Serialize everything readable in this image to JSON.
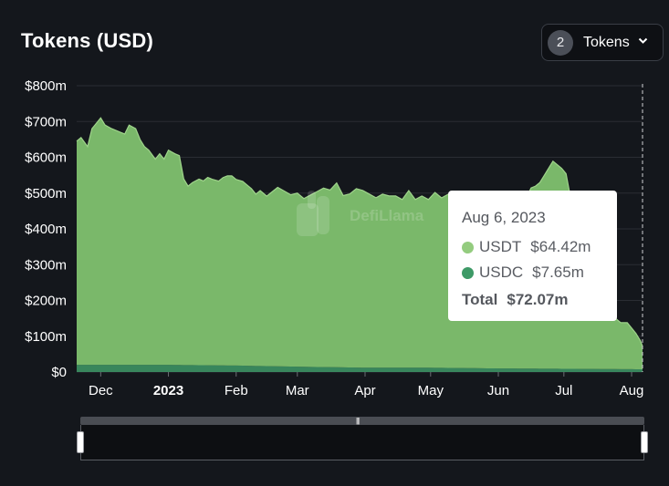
{
  "header": {
    "title": "Tokens (USD)",
    "token_count": "2",
    "select_label": "Tokens"
  },
  "watermark": "DefiLlama",
  "colors": {
    "background": "#14171c",
    "usdt": "#7ab86a",
    "usdc": "#3e9a67",
    "grid": "#2a2d33"
  },
  "tooltip": {
    "date": "Aug 6, 2023",
    "rows": [
      {
        "name": "USDT",
        "value": "$64.42m",
        "color": "#94cc7f"
      },
      {
        "name": "USDC",
        "value": "$7.65m",
        "color": "#3e9a67"
      }
    ],
    "total_label": "Total",
    "total_value": "$72.07m"
  },
  "chart_data": {
    "type": "area",
    "stacked": true,
    "title": "Tokens (USD)",
    "x_tick_labels": [
      "Dec",
      "2023",
      "Feb",
      "Mar",
      "Apr",
      "May",
      "Jun",
      "Jul",
      "Aug"
    ],
    "y_tick_labels": [
      "$0",
      "$100m",
      "$200m",
      "$300m",
      "$400m",
      "$500m",
      "$600m",
      "$700m",
      "$800m"
    ],
    "ylim": [
      0,
      800
    ],
    "y_unit": "USD millions",
    "xlim": [
      "2022-11-20",
      "2023-08-06"
    ],
    "grid": true,
    "legend": "none (tooltip)",
    "series": [
      {
        "name": "USDT",
        "dates": [
          "2022-11-20",
          "2022-11-22",
          "2022-11-25",
          "2022-11-27",
          "2022-11-29",
          "2022-12-01",
          "2022-12-03",
          "2022-12-06",
          "2022-12-08",
          "2022-12-10",
          "2022-12-12",
          "2022-12-14",
          "2022-12-17",
          "2022-12-19",
          "2022-12-21",
          "2022-12-23",
          "2022-12-26",
          "2022-12-28",
          "2022-12-30",
          "2023-01-01",
          "2023-01-04",
          "2023-01-06",
          "2023-01-08",
          "2023-01-10",
          "2023-01-12",
          "2023-01-15",
          "2023-01-17",
          "2023-01-19",
          "2023-01-21",
          "2023-01-24",
          "2023-01-26",
          "2023-01-28",
          "2023-01-30",
          "2023-02-01",
          "2023-02-04",
          "2023-02-06",
          "2023-02-08",
          "2023-02-10",
          "2023-02-12",
          "2023-02-15",
          "2023-02-17",
          "2023-02-20",
          "2023-02-23",
          "2023-02-26",
          "2023-03-01",
          "2023-03-04",
          "2023-03-07",
          "2023-03-10",
          "2023-03-13",
          "2023-03-16",
          "2023-03-19",
          "2023-03-22",
          "2023-03-25",
          "2023-03-28",
          "2023-03-31",
          "2023-04-03",
          "2023-04-06",
          "2023-04-09",
          "2023-04-12",
          "2023-04-15",
          "2023-04-18",
          "2023-04-21",
          "2023-04-24",
          "2023-04-27",
          "2023-04-30",
          "2023-05-03",
          "2023-05-06",
          "2023-05-09",
          "2023-05-12",
          "2023-05-15",
          "2023-05-18",
          "2023-05-21",
          "2023-05-24",
          "2023-05-27",
          "2023-05-30",
          "2023-06-02",
          "2023-06-05",
          "2023-06-08",
          "2023-06-11",
          "2023-06-14",
          "2023-06-16",
          "2023-06-18",
          "2023-06-20",
          "2023-06-22",
          "2023-06-24",
          "2023-06-26",
          "2023-06-28",
          "2023-06-30",
          "2023-07-02",
          "2023-07-04",
          "2023-07-06",
          "2023-07-08",
          "2023-07-10",
          "2023-07-12",
          "2023-07-15",
          "2023-07-18",
          "2023-07-21",
          "2023-07-24",
          "2023-07-27",
          "2023-07-30",
          "2023-08-01",
          "2023-08-03",
          "2023-08-05",
          "2023-08-06"
        ],
        "values": [
          625,
          635,
          610,
          660,
          675,
          690,
          670,
          660,
          655,
          650,
          645,
          670,
          660,
          630,
          610,
          600,
          575,
          590,
          575,
          600,
          590,
          585,
          520,
          500,
          510,
          520,
          515,
          525,
          520,
          515,
          525,
          530,
          530,
          520,
          515,
          505,
          495,
          480,
          490,
          475,
          485,
          500,
          490,
          480,
          485,
          470,
          480,
          490,
          500,
          495,
          515,
          480,
          485,
          500,
          495,
          485,
          475,
          485,
          480,
          480,
          470,
          495,
          470,
          480,
          470,
          490,
          475,
          485,
          465,
          480,
          470,
          485,
          475,
          480,
          475,
          480,
          485,
          480,
          490,
          480,
          505,
          510,
          520,
          540,
          560,
          580,
          570,
          560,
          545,
          480,
          400,
          320,
          230,
          180,
          160,
          150,
          140,
          145,
          130,
          130,
          115,
          100,
          80,
          64.42
        ]
      },
      {
        "name": "USDC",
        "dates": [
          "2022-11-20",
          "2023-01-01",
          "2023-02-01",
          "2023-03-01",
          "2023-04-01",
          "2023-05-01",
          "2023-06-01",
          "2023-07-01",
          "2023-08-06"
        ],
        "values": [
          20,
          20,
          18,
          15,
          12,
          12,
          10,
          9,
          7.65
        ]
      }
    ]
  }
}
